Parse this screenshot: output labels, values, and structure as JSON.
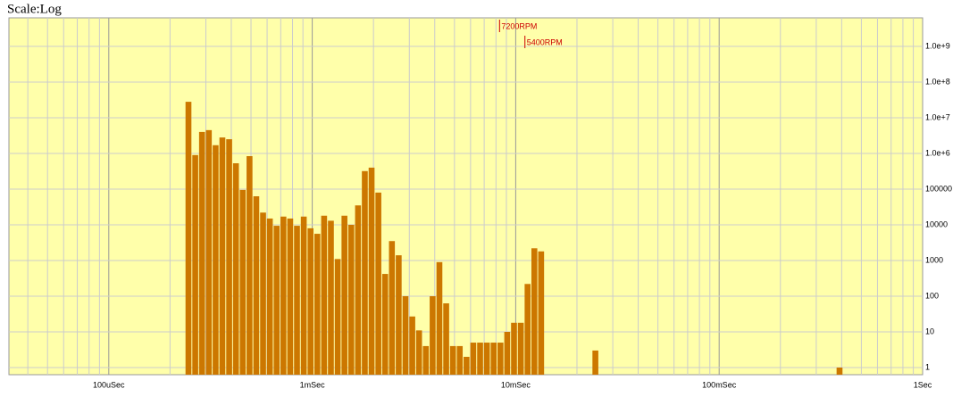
{
  "chart_data": {
    "type": "histogram",
    "title": "Scale:Log",
    "log_x": true,
    "log_y": true,
    "grid": true,
    "color": "#cc7700",
    "background": "#ffffaa",
    "bins": [
      0.0002383,
      0.0002573,
      0.0002778,
      0.0003,
      0.000324,
      0.0003498,
      0.0003777,
      0.0004079,
      0.0004404,
      0.0004755,
      0.0005135,
      0.0005544,
      0.0005986,
      0.0006464,
      0.000698,
      0.0007537,
      0.0008138,
      0.0008787,
      0.0009488,
      0.0010245,
      0.0011062,
      0.0011945,
      0.0012898,
      0.0013927,
      0.0015038,
      0.0016238,
      0.0017533,
      0.0018932,
      0.0020443,
      0.0022074,
      0.002383,
      0.002573,
      0.002778,
      0.003,
      0.00324,
      0.003498,
      0.003777,
      0.004079,
      0.004404,
      0.004755,
      0.005135,
      0.005544,
      0.005986,
      0.006464,
      0.00698,
      0.007537,
      0.008138,
      0.008787,
      0.009488,
      0.010245,
      0.011062,
      0.011945,
      0.012898,
      0.013927,
      0.015038,
      0.016238,
      0.017533,
      0.018932,
      0.020443,
      0.022074,
      0.02383,
      0.02573,
      0.02778,
      0.03,
      0.0324,
      0.03498,
      0.03777,
      0.04079,
      0.04404,
      0.04755,
      0.05135,
      0.05544,
      0.05986,
      0.06464,
      0.0698,
      0.07537,
      0.08138,
      0.08787,
      0.09488,
      0.10245,
      0.11062,
      0.11945,
      0.12898,
      0.13927,
      0.15038,
      0.16238,
      0.17533,
      0.18932,
      0.20443,
      0.22074,
      0.2383,
      0.2573,
      0.2778,
      0.3,
      0.324,
      0.3498,
      0.3777,
      0.4079
    ],
    "values": [
      28000000,
      900000,
      4000000,
      4500000,
      1700000,
      2800000,
      2500000,
      530000,
      95000,
      840000,
      63000,
      22000,
      15000,
      9400,
      17000,
      15000,
      9400,
      17000,
      8000,
      5600,
      18000,
      13000,
      1100,
      18000,
      10000,
      35000,
      320000,
      400000,
      80000,
      420,
      3500,
      1400,
      100,
      27,
      11,
      4,
      100,
      900,
      63,
      4,
      4,
      2,
      5,
      5,
      5,
      5,
      5,
      10,
      18,
      18,
      220,
      2200,
      1800,
      0,
      0,
      0,
      0,
      0,
      0,
      0,
      3,
      0,
      0,
      0,
      0,
      0,
      0,
      0,
      0,
      0,
      0,
      0,
      0,
      0,
      0,
      0,
      0,
      0,
      0,
      0,
      0,
      0,
      0,
      0,
      0,
      0,
      0,
      0,
      0,
      0,
      0,
      0,
      0,
      0,
      0,
      0,
      1
    ],
    "xlim": [
      3.23e-05,
      1
    ],
    "ylim": [
      0.631,
      6300000000
    ],
    "xticks": [
      {
        "value": 0.0001,
        "label": "100uSec"
      },
      {
        "value": 0.001,
        "label": "1mSec"
      },
      {
        "value": 0.01,
        "label": "10mSec"
      },
      {
        "value": 0.1,
        "label": "100mSec"
      },
      {
        "value": 1,
        "label": "1Sec"
      }
    ],
    "xminorticks": [
      4e-05,
      5e-05,
      6e-05,
      7e-05,
      8e-05,
      9e-05,
      0.0002,
      0.0003,
      0.0004,
      0.0005,
      0.0006,
      0.0007,
      0.0008,
      0.0009,
      0.002,
      0.003,
      0.004,
      0.005,
      0.006,
      0.007,
      0.008,
      0.009,
      0.02,
      0.03,
      0.04,
      0.05,
      0.06,
      0.07,
      0.08,
      0.09,
      0.2,
      0.3,
      0.4,
      0.5,
      0.6,
      0.7,
      0.8,
      0.9
    ],
    "yticks": [
      1,
      10,
      100,
      1000,
      10000,
      100000,
      {
        "value": 1000000,
        "label": "1.0e+6"
      },
      {
        "value": 10000000,
        "label": "1.0e+7"
      },
      {
        "value": 100000000,
        "label": "1.0e+8"
      },
      {
        "value": 1000000000,
        "label": "1.0e+9"
      }
    ],
    "annotations": [
      {
        "text": "7200RPM",
        "x": 0.00833,
        "color": "#cc0000"
      },
      {
        "text": "5400RPM",
        "x": 0.0111,
        "color": "#cc0000"
      }
    ]
  }
}
